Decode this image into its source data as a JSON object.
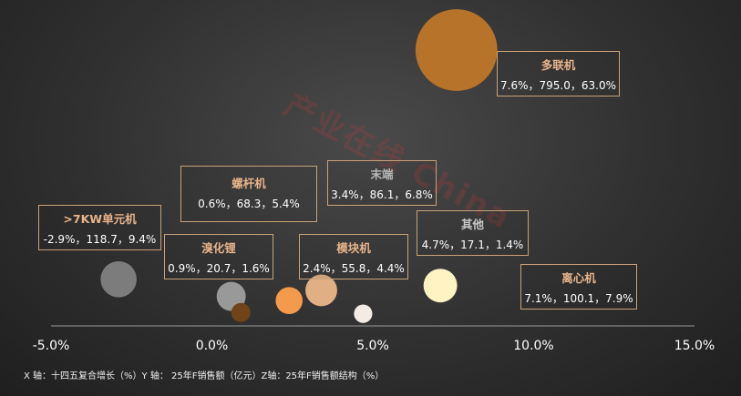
{
  "chart_data": {
    "type": "bubble",
    "xlim": [
      -5.0,
      15.0
    ],
    "x_ticks": [
      "-5.0%",
      "0.0%",
      "5.0%",
      "10.0%",
      "15.0%"
    ],
    "x_tick_values": [
      -5,
      0,
      5,
      10,
      15
    ],
    "footnote": "X 轴：十四五复合增长（%）Y 轴： 25年F销售额（亿元）Z轴：25年F销售额结构（%）",
    "bubbles": [
      {
        "name": "多联机",
        "x": 7.6,
        "y": 795.0,
        "z": 63.0,
        "values_text": "7.6%，795.0，63.0%",
        "color": "#b8732a",
        "name_color": "#e8b48a"
      },
      {
        "name": ">7KW单元机",
        "x": -2.9,
        "y": 118.7,
        "z": 9.4,
        "values_text": "-2.9%，118.7，9.4%",
        "color": "#7c7c7c",
        "name_color": "#e8b48a"
      },
      {
        "name": "螺杆机",
        "x": 0.6,
        "y": 68.3,
        "z": 5.4,
        "values_text": "0.6%，68.3，5.4%",
        "color": "#999999",
        "name_color": "#e8b48a"
      },
      {
        "name": "溴化锂",
        "x": 0.9,
        "y": 20.7,
        "z": 1.6,
        "values_text": "0.9%，20.7，1.6%",
        "color": "#6e4418",
        "name_color": "#e8b48a"
      },
      {
        "name": "末端",
        "x": 3.4,
        "y": 86.1,
        "z": 6.8,
        "values_text": "3.4%，86.1，6.8%",
        "color": "#e0b084",
        "name_color": "#b9b9b9"
      },
      {
        "name": "模块机",
        "x": 2.4,
        "y": 55.8,
        "z": 4.4,
        "values_text": "2.4%，55.8，4.4%",
        "color": "#f39a4c",
        "name_color": "#e8b48a"
      },
      {
        "name": "其他",
        "x": 4.7,
        "y": 17.1,
        "z": 1.4,
        "values_text": "4.7%，17.1，1.4%",
        "color": "#f3ece4",
        "name_color": "#c9c9c9"
      },
      {
        "name": "离心机",
        "x": 7.1,
        "y": 100.1,
        "z": 7.9,
        "values_text": "7.1%，100.1，7.9%",
        "color": "#fff3c4",
        "name_color": "#e8b48a"
      }
    ]
  },
  "watermark_text": "产业在线 China"
}
